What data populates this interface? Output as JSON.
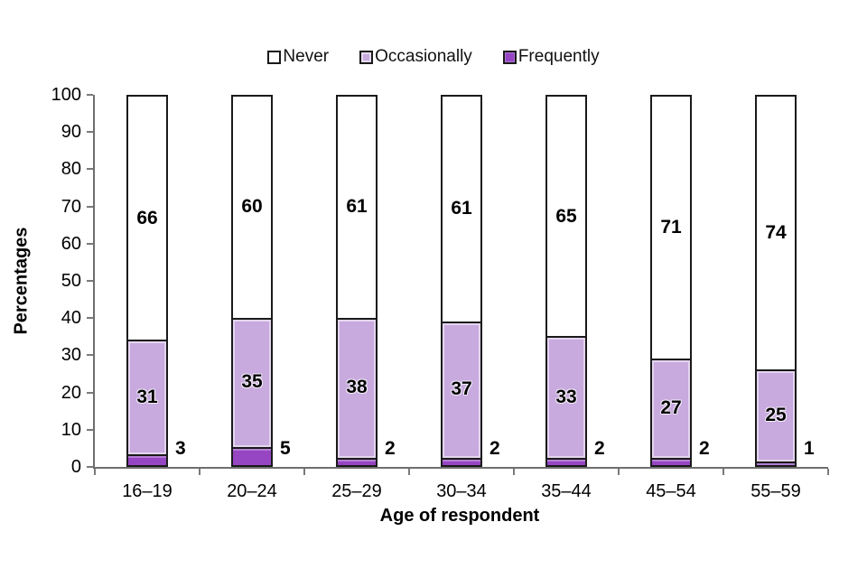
{
  "chart_data": {
    "type": "bar",
    "stacked": true,
    "title": "",
    "xlabel": "Age of respondent",
    "ylabel": "Percentages",
    "ylim": [
      0,
      100
    ],
    "yticks": [
      0,
      10,
      20,
      30,
      40,
      50,
      60,
      70,
      80,
      90,
      100
    ],
    "categories": [
      "16–19",
      "20–24",
      "25–29",
      "30–34",
      "35–44",
      "45–54",
      "55–59"
    ],
    "series": [
      {
        "name": "Never",
        "color": "#FFFFFF",
        "values": [
          66,
          60,
          61,
          61,
          65,
          71,
          74
        ],
        "label_placement": "inside"
      },
      {
        "name": "Occasionally",
        "color": "#C8AADE",
        "values": [
          31,
          35,
          38,
          37,
          33,
          27,
          25
        ],
        "label_placement": "inside"
      },
      {
        "name": "Frequently",
        "color": "#9646C3",
        "values": [
          3,
          5,
          2,
          2,
          2,
          2,
          1
        ],
        "label_placement": "outside-right"
      }
    ],
    "legend_position": "top",
    "grid": false,
    "bar_border_color": "#1a1a1a",
    "axis_color": "#6e6e6e",
    "label_color": "#000000"
  }
}
